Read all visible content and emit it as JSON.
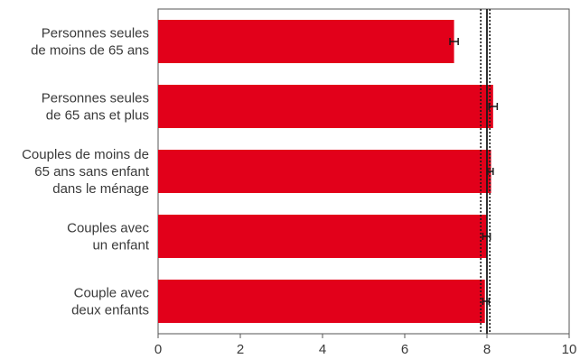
{
  "chart_data": {
    "type": "bar",
    "orientation": "horizontal",
    "categories": [
      [
        "Personnes seules",
        "de moins de 65 ans"
      ],
      [
        "Personnes seules",
        "de 65 ans et plus"
      ],
      [
        "Couples de moins de",
        "65 ans sans enfant",
        "dans le ménage"
      ],
      [
        "Couples avec",
        "un enfant"
      ],
      [
        "Couple avec",
        "deux enfants"
      ]
    ],
    "values": [
      7.2,
      8.15,
      8.1,
      8.0,
      7.95
    ],
    "error_bars": [
      [
        7.1,
        7.3
      ],
      [
        8.05,
        8.25
      ],
      [
        8.02,
        8.15
      ],
      [
        7.9,
        8.08
      ],
      [
        7.9,
        8.05
      ]
    ],
    "reference_lines": [
      {
        "value": 7.85,
        "style": "dotted"
      },
      {
        "value": 8.0,
        "style": "solid"
      },
      {
        "value": 8.07,
        "style": "dotted"
      }
    ],
    "xlim": [
      0,
      10
    ],
    "xticks": [
      0,
      2,
      4,
      6,
      8,
      10
    ],
    "xtick_labels": [
      "0",
      "2",
      "4",
      "6",
      "8",
      "10"
    ],
    "grid": false,
    "bar_color": "#e2001a",
    "error_bar_color": "#1a1a1a",
    "reference_line_color": "#1a1a1a",
    "axis_color": "#555555"
  }
}
